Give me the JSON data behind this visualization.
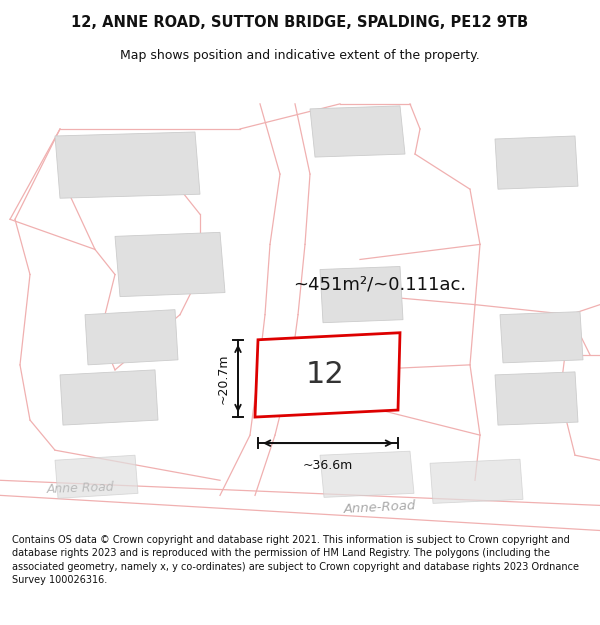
{
  "title_line1": "12, ANNE ROAD, SUTTON BRIDGE, SPALDING, PE12 9TB",
  "title_line2": "Map shows position and indicative extent of the property.",
  "area_label": "~451m²/~0.111ac.",
  "property_number": "12",
  "dim_width": "~36.6m",
  "dim_height": "~20.7m",
  "anne_road_label_left": "Anne Road",
  "anne_road_label_bottom": "Anne-Road",
  "anne_road_label_diag": "Anne Road",
  "footer_text": "Contains OS data © Crown copyright and database right 2021. This information is subject to Crown copyright and database rights 2023 and is reproduced with the permission of HM Land Registry. The polygons (including the associated geometry, namely x, y co-ordinates) are subject to Crown copyright and database rights 2023 Ordnance Survey 100026316.",
  "map_bg": "#f7f6f6",
  "prop_fill": "#ffffff",
  "prop_edge": "#dd0000",
  "bldg_fill": "#e0e0e0",
  "bldg_edge": "#cccccc",
  "road_fill": "#f5eeee",
  "road_edge": "#f0b0b0",
  "plot_line": "#f0b0b0",
  "dim_color": "#111111",
  "area_color": "#111111",
  "label_color": "#bbbbbb",
  "title_color": "#111111",
  "footer_color": "#111111"
}
